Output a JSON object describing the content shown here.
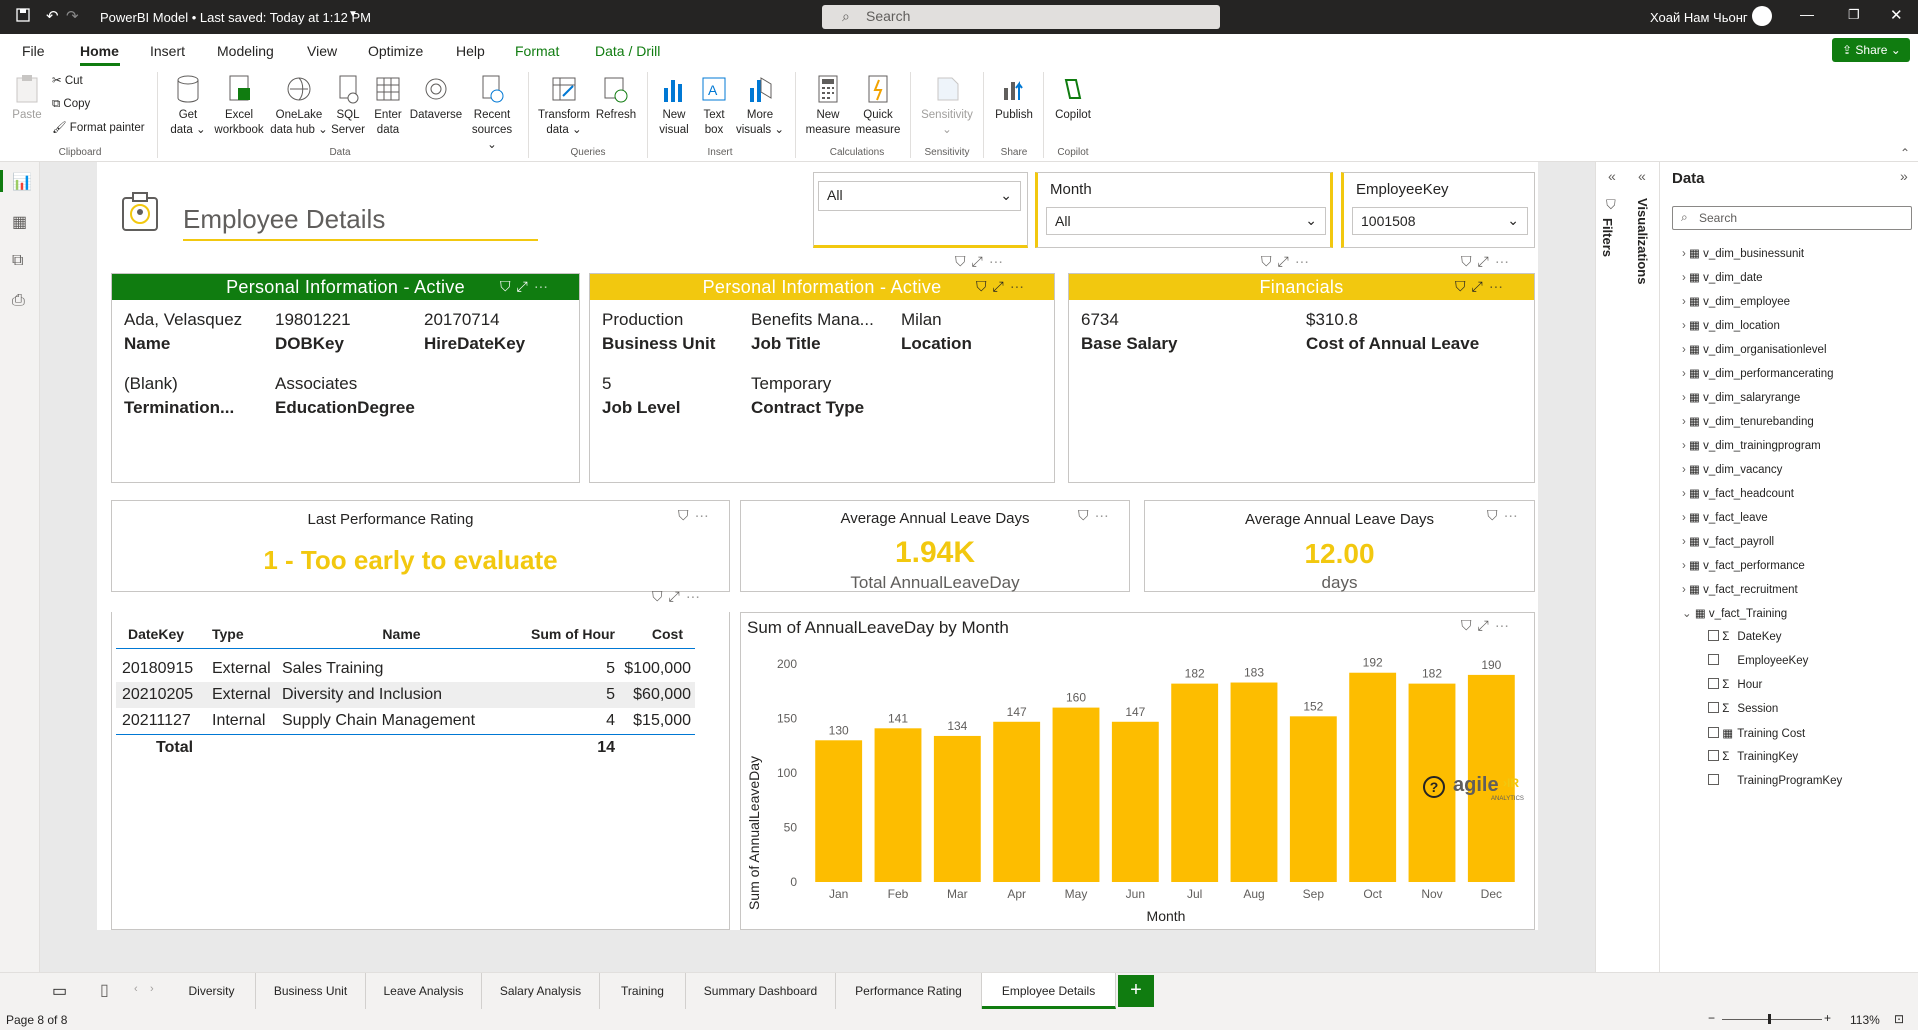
{
  "titlebar": {
    "title": "PowerBI Model • Last saved: Today at 1:12 PM",
    "search_placeholder": "Search",
    "user": "Хоай Нам Чьонг"
  },
  "menu": [
    "File",
    "Home",
    "Insert",
    "Modeling",
    "View",
    "Optimize",
    "Help",
    "Format",
    "Data / Drill"
  ],
  "share": "Share",
  "ribbon": {
    "clipboard": {
      "paste": "Paste",
      "cut": "Cut",
      "copy": "Copy",
      "format_painter": "Format painter",
      "group": "Clipboard"
    },
    "data": {
      "get_data": "Get data ⌄",
      "excel": "Excel workbook",
      "onelake": "OneLake data hub ⌄",
      "sql": "SQL Server",
      "enter": "Enter data",
      "dataverse": "Dataverse",
      "recent": "Recent sources ⌄",
      "group": "Data"
    },
    "queries": {
      "transform": "Transform data ⌄",
      "refresh": "Refresh",
      "group": "Queries"
    },
    "insert": {
      "new_visual": "New visual",
      "text_box": "Text box",
      "more_visuals": "More visuals ⌄",
      "group": "Insert"
    },
    "calculations": {
      "new_measure": "New measure",
      "quick_measure": "Quick measure",
      "group": "Calculations"
    },
    "sensitivity": {
      "label": "Sensitivity ⌄",
      "group": "Sensitivity"
    },
    "share": {
      "publish": "Publish",
      "group": "Share"
    },
    "copilot": {
      "label": "Copilot",
      "group": "Copilot"
    }
  },
  "report": {
    "title": "Employee Details",
    "slicer1": {
      "value": "All"
    },
    "slicer2": {
      "label": "Month",
      "value": "All"
    },
    "slicer3": {
      "label": "EmployeeKey",
      "value": "1001508"
    },
    "personal1": {
      "header": "Personal Information - Active",
      "name": "Ada, Velasquez",
      "name_lbl": "Name",
      "dob": "19801221",
      "dob_lbl": "DOBKey",
      "hire": "20170714",
      "hire_lbl": "HireDateKey",
      "term": "(Blank)",
      "term_lbl": "Termination...",
      "edu": "Associates",
      "edu_lbl": "EducationDegree"
    },
    "personal2": {
      "header": "Personal Information - Active",
      "bu": "Production",
      "bu_lbl": "Business Unit",
      "job": "Benefits Mana...",
      "job_lbl": "Job Title",
      "loc": "Milan",
      "loc_lbl": "Location",
      "lvl": "5",
      "lvl_lbl": "Job Level",
      "ct": "Temporary",
      "ct_lbl": "Contract Type"
    },
    "financials": {
      "header": "Financials",
      "salary": "6734",
      "salary_lbl": "Base Salary",
      "cost": "$310.8",
      "cost_lbl": "Cost of Annual Leave"
    },
    "rating": {
      "title": "Last Performance Rating",
      "value": "1 - Too early to evaluate"
    },
    "kpi1": {
      "title": "Average Annual Leave Days",
      "value": "1.94K",
      "label": "Total AnnualLeaveDay"
    },
    "kpi2": {
      "title": "Average Annual Leave Days",
      "value": "12.00",
      "label": "days"
    },
    "table": {
      "headers": [
        "DateKey",
        "Type",
        "Name",
        "Sum of Hour",
        "Cost"
      ],
      "rows": [
        [
          "20180915",
          "External",
          "Sales Training",
          "5",
          "$100,000"
        ],
        [
          "20210205",
          "External",
          "Diversity and Inclusion",
          "5",
          "$60,000"
        ],
        [
          "20211127",
          "Internal",
          "Supply Chain Management",
          "4",
          "$15,000"
        ]
      ],
      "total_label": "Total",
      "total_value": "14"
    },
    "brand": "agile",
    "brand_sub": "ANALYTICS"
  },
  "chart_data": {
    "type": "bar",
    "title": "Sum of AnnualLeaveDay by Month",
    "xlabel": "Month",
    "ylabel": "Sum of AnnualLeaveDay",
    "categories": [
      "Jan",
      "Feb",
      "Mar",
      "Apr",
      "May",
      "Jun",
      "Jul",
      "Aug",
      "Sep",
      "Oct",
      "Nov",
      "Dec"
    ],
    "values": [
      130,
      141,
      134,
      147,
      160,
      147,
      182,
      183,
      152,
      192,
      182,
      190
    ],
    "ylim": [
      0,
      200
    ],
    "yticks": [
      0,
      50,
      100,
      150,
      200
    ],
    "color": "#fdbd00"
  },
  "panes": {
    "filters": "Filters",
    "visualizations": "Visualizations",
    "data_title": "Data",
    "data_search": "Search",
    "tables": [
      "v_dim_businessunit",
      "v_dim_date",
      "v_dim_employee",
      "v_dim_location",
      "v_dim_organisationlevel",
      "v_dim_performancerating",
      "v_dim_salaryrange",
      "v_dim_tenurebanding",
      "v_dim_trainingprogram",
      "v_dim_vacancy",
      "v_fact_headcount",
      "v_fact_leave",
      "v_fact_payroll",
      "v_fact_performance",
      "v_fact_recruitment",
      "v_fact_Training"
    ],
    "fields": [
      {
        "name": "DateKey",
        "sigma": "Σ"
      },
      {
        "name": "EmployeeKey",
        "sigma": ""
      },
      {
        "name": "Hour",
        "sigma": "Σ"
      },
      {
        "name": "Session",
        "sigma": "Σ"
      },
      {
        "name": "Training Cost",
        "sigma": "▦"
      },
      {
        "name": "TrainingKey",
        "sigma": "Σ"
      },
      {
        "name": "TrainingProgramKey",
        "sigma": ""
      }
    ]
  },
  "tabs": [
    "Diversity",
    "Business Unit",
    "Leave Analysis",
    "Salary Analysis",
    "Training",
    "Summary Dashboard",
    "Performance Rating",
    "Employee Details"
  ],
  "status": {
    "page": "Page 8 of 8",
    "zoom": "113%",
    "minus": "−",
    "plus": "+"
  },
  "colors": {
    "green": "#107c10",
    "yellow": "#f2c80f",
    "bar": "#fdbd00"
  }
}
